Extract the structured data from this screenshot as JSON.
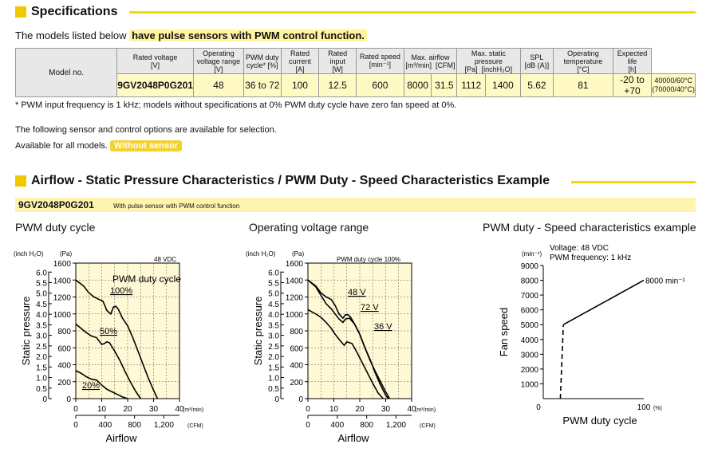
{
  "spec_section": {
    "title": "Specifications"
  },
  "intro": {
    "prefix": "The models listed below ",
    "highlight": "have pulse sensors with PWM control function."
  },
  "table": {
    "model_header": "Model no.",
    "headers": [
      [
        "Rated voltage",
        "[V]"
      ],
      [
        "Operating voltage range",
        "[V]"
      ],
      [
        "PWM duty",
        "cycle* [%]"
      ],
      [
        "Rated current",
        "[A]"
      ],
      [
        "Rated input",
        "[W]"
      ],
      [
        "Rated speed",
        "[min⁻¹]"
      ],
      [
        "Max. airflow",
        "[m³/min]",
        "[CFM]"
      ],
      [
        "Max. static pressure",
        "[Pa]",
        "[inchH₂O]"
      ],
      [
        "SPL",
        "[dB (A)]"
      ],
      [
        "Operating temperature",
        "[°C]"
      ],
      [
        "Expected life",
        "[h]"
      ]
    ],
    "row": {
      "model": "9GV2048P0G201",
      "rated_voltage": "48",
      "operating_range": "36 to 72",
      "pwm_duty": "100",
      "rated_current": "12.5",
      "rated_input": "600",
      "rated_speed": "8000",
      "airflow_m3": "31.5",
      "airflow_cfm": "1112",
      "pressure_pa": "1400",
      "pressure_inch": "5.62",
      "spl": "81",
      "temp": "-20 to +70",
      "life1": "40000/60°C",
      "life2": "(70000/40°C)"
    }
  },
  "footnote": "* PWM input frequency is 1 kHz; models without specifications at 0% PWM duty cycle have zero fan speed at 0%.",
  "sensor_text": "The following sensor and control options are available for selection.",
  "available_text": "Available for all models.",
  "without_sensor": "Without sensor",
  "airflow_section": {
    "title": "Airflow - Static Pressure Characteristics / PWM Duty - Speed Characteristics Example"
  },
  "model_bar": {
    "model": "9GV2048P0G201",
    "note": "With pulse sensor with PWM control function"
  },
  "chart_titles": [
    "PWM duty cycle",
    "Operating voltage range",
    "PWM duty - Speed characteristics example"
  ],
  "chart_data": [
    {
      "type": "line",
      "title": "PWM duty cycle",
      "annotation": "48 VDC",
      "legend_label": "PWM duty cycle",
      "xlabel": "Airflow",
      "ylabel": "Static pressure",
      "x_unit": "(m³/min)",
      "x2_unit": "(CFM)",
      "y_unit": "(Pa)",
      "y2_unit": "(inch H₂O)",
      "xlim": [
        0,
        40
      ],
      "ylim": [
        0,
        1600
      ],
      "x_ticks": [
        "0",
        "10",
        "20",
        "30",
        "40"
      ],
      "x2_ticks": [
        "0",
        "400",
        "800",
        "1,200"
      ],
      "y_ticks": [
        "0",
        "200",
        "400",
        "600",
        "800",
        "1000",
        "1200",
        "1400",
        "1600"
      ],
      "y2_ticks": [
        "0",
        "0.5",
        "1.0",
        "1.5",
        "2.0",
        "2.5",
        "3.0",
        "3.5",
        "4.0",
        "4.5",
        "5.0",
        "5.5",
        "6.0"
      ],
      "series": [
        {
          "name": "100%",
          "x": [
            0,
            3,
            5,
            7,
            9,
            10.5,
            12,
            13.5,
            14.5,
            15.5,
            16.5,
            18,
            20,
            22,
            24,
            26,
            28,
            30,
            31.5
          ],
          "y": [
            1400,
            1330,
            1250,
            1200,
            1170,
            1150,
            1040,
            1000,
            1080,
            1090,
            1050,
            950,
            860,
            720,
            560,
            400,
            240,
            100,
            0
          ]
        },
        {
          "name": "50%",
          "x": [
            0,
            2,
            4,
            6,
            8,
            9,
            10,
            11,
            12,
            13,
            15,
            17,
            19,
            21,
            23,
            25
          ],
          "y": [
            880,
            830,
            780,
            740,
            720,
            680,
            640,
            650,
            670,
            660,
            560,
            450,
            320,
            200,
            90,
            0
          ]
        },
        {
          "name": "20%",
          "x": [
            0,
            2,
            4,
            6,
            8,
            10,
            12,
            14,
            16,
            18,
            20
          ],
          "y": [
            330,
            300,
            260,
            230,
            220,
            160,
            110,
            80,
            50,
            20,
            0
          ]
        }
      ]
    },
    {
      "type": "line",
      "title": "Operating voltage range",
      "annotation": "PWM duty cycle 100%",
      "xlabel": "Airflow",
      "ylabel": "Static pressure",
      "x_unit": "(m³/min)",
      "x2_unit": "(CFM)",
      "y_unit": "(Pa)",
      "y2_unit": "(inch H₂O)",
      "xlim": [
        0,
        40
      ],
      "ylim": [
        0,
        1600
      ],
      "x_ticks": [
        "0",
        "10",
        "20",
        "30",
        "40"
      ],
      "x2_ticks": [
        "0",
        "400",
        "800",
        "1,200"
      ],
      "y_ticks": [
        "0",
        "200",
        "400",
        "600",
        "800",
        "1000",
        "1200",
        "1400",
        "1600"
      ],
      "y2_ticks": [
        "0",
        "0.5",
        "1.0",
        "1.5",
        "2.0",
        "2.5",
        "3.0",
        "3.5",
        "4.0",
        "4.5",
        "5.0",
        "5.5",
        "6.0"
      ],
      "series": [
        {
          "name": "48 V",
          "x": [
            0,
            3,
            5,
            7,
            9,
            10.5,
            12,
            13.5,
            14.5,
            15.5,
            16.5,
            18,
            20,
            22,
            24,
            26,
            28,
            30,
            31.5
          ],
          "y": [
            1400,
            1330,
            1250,
            1200,
            1170,
            1100,
            1000,
            950,
            990,
            990,
            960,
            880,
            760,
            600,
            450,
            320,
            200,
            80,
            0
          ]
        },
        {
          "name": "72 V",
          "x": [
            0,
            3,
            5,
            7,
            9,
            10.5,
            12,
            13.5,
            14.5,
            16,
            18,
            20,
            22,
            24,
            26,
            28,
            30,
            31
          ],
          "y": [
            1400,
            1320,
            1220,
            1120,
            1060,
            1000,
            940,
            900,
            940,
            950,
            880,
            760,
            600,
            460,
            300,
            160,
            40,
            0
          ]
        },
        {
          "name": "36 V",
          "x": [
            0,
            3,
            5,
            7,
            9,
            10,
            12,
            14,
            15,
            17,
            19,
            21,
            23,
            25,
            27,
            29
          ],
          "y": [
            1050,
            1000,
            960,
            900,
            830,
            780,
            700,
            630,
            670,
            650,
            540,
            420,
            300,
            180,
            70,
            0
          ]
        }
      ]
    },
    {
      "type": "line",
      "title": "PWM duty - Speed characteristics example",
      "annotation1": "Voltage: 48 VDC",
      "annotation2": "PWM frequency: 1 kHz",
      "xlabel": "PWM duty cycle",
      "ylabel": "Fan speed",
      "x_unit": "(%)",
      "y_unit": "(min⁻¹)",
      "end_label": "8000 min⁻¹",
      "xlim": [
        0,
        100
      ],
      "ylim": [
        0,
        9000
      ],
      "x_ticks": [
        "0",
        "100"
      ],
      "y_ticks": [
        "1000",
        "2000",
        "3000",
        "4000",
        "5000",
        "6000",
        "7000",
        "8000",
        "9000"
      ],
      "series": [
        {
          "name": "speed",
          "x": [
            20,
            100
          ],
          "y": [
            5000,
            8000
          ],
          "dashed_to": {
            "x": 17,
            "y": 0
          }
        }
      ]
    }
  ]
}
